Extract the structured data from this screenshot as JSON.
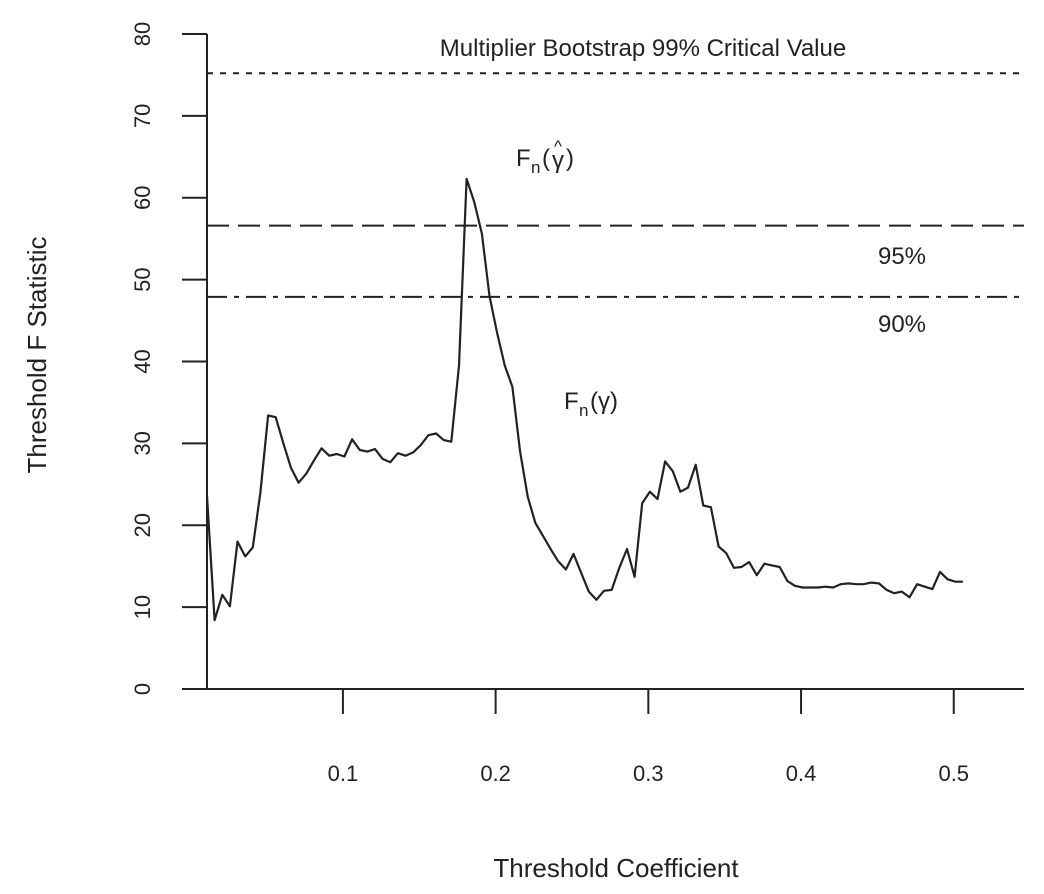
{
  "chart_data": {
    "type": "line",
    "title": "",
    "xlabel": "Threshold Coefficient",
    "ylabel": "Threshold F Statistic",
    "xlim": [
      0.011,
      0.546
    ],
    "ylim": [
      0,
      80
    ],
    "x_ticks": [
      0.1,
      0.2,
      0.3,
      0.4,
      0.5
    ],
    "x_tick_labels": [
      "0.1",
      "0.2",
      "0.3",
      "0.4",
      "0.5"
    ],
    "y_ticks": [
      0,
      10,
      20,
      30,
      40,
      50,
      60,
      70,
      80
    ],
    "y_tick_labels": [
      "0",
      "10",
      "20",
      "30",
      "40",
      "50",
      "60",
      "70",
      "80"
    ],
    "grid": false,
    "series": [
      {
        "points": [
          [
            0.011,
            23.6
          ],
          [
            0.016,
            8.4
          ],
          [
            0.021,
            11.5
          ],
          [
            0.026,
            10.1
          ],
          [
            0.031,
            18.0
          ],
          [
            0.036,
            16.2
          ],
          [
            0.041,
            17.3
          ],
          [
            0.046,
            24.0
          ],
          [
            0.051,
            33.4
          ],
          [
            0.056,
            33.2
          ],
          [
            0.061,
            30.0
          ],
          [
            0.066,
            27.0
          ],
          [
            0.071,
            25.2
          ],
          [
            0.076,
            26.3
          ],
          [
            0.081,
            27.9
          ],
          [
            0.086,
            29.4
          ],
          [
            0.091,
            28.5
          ],
          [
            0.096,
            28.7
          ],
          [
            0.101,
            28.4
          ],
          [
            0.106,
            30.5
          ],
          [
            0.111,
            29.2
          ],
          [
            0.116,
            29.0
          ],
          [
            0.121,
            29.3
          ],
          [
            0.126,
            28.1
          ],
          [
            0.131,
            27.7
          ],
          [
            0.136,
            28.8
          ],
          [
            0.141,
            28.5
          ],
          [
            0.146,
            28.9
          ],
          [
            0.151,
            29.8
          ],
          [
            0.156,
            31.0
          ],
          [
            0.161,
            31.2
          ],
          [
            0.166,
            30.4
          ],
          [
            0.171,
            30.2
          ],
          [
            0.176,
            39.5
          ],
          [
            0.181,
            62.3
          ],
          [
            0.186,
            59.5
          ],
          [
            0.191,
            55.6
          ],
          [
            0.196,
            48.0
          ],
          [
            0.201,
            43.5
          ],
          [
            0.206,
            39.5
          ],
          [
            0.211,
            36.9
          ],
          [
            0.216,
            29.0
          ],
          [
            0.221,
            23.5
          ],
          [
            0.226,
            20.3
          ],
          [
            0.231,
            18.7
          ],
          [
            0.236,
            17.1
          ],
          [
            0.241,
            15.6
          ],
          [
            0.246,
            14.6
          ],
          [
            0.251,
            16.5
          ],
          [
            0.256,
            14.2
          ],
          [
            0.261,
            11.9
          ],
          [
            0.266,
            10.9
          ],
          [
            0.271,
            12.0
          ],
          [
            0.276,
            12.1
          ],
          [
            0.281,
            14.8
          ],
          [
            0.286,
            17.1
          ],
          [
            0.291,
            13.7
          ],
          [
            0.296,
            22.7
          ],
          [
            0.301,
            24.1
          ],
          [
            0.306,
            23.2
          ],
          [
            0.311,
            27.8
          ],
          [
            0.316,
            26.6
          ],
          [
            0.321,
            24.1
          ],
          [
            0.326,
            24.6
          ],
          [
            0.331,
            27.4
          ],
          [
            0.336,
            22.4
          ],
          [
            0.341,
            22.2
          ],
          [
            0.346,
            17.4
          ],
          [
            0.351,
            16.6
          ],
          [
            0.356,
            14.8
          ],
          [
            0.361,
            14.9
          ],
          [
            0.366,
            15.5
          ],
          [
            0.371,
            13.9
          ],
          [
            0.376,
            15.3
          ],
          [
            0.381,
            15.1
          ],
          [
            0.386,
            14.9
          ],
          [
            0.391,
            13.2
          ],
          [
            0.396,
            12.6
          ],
          [
            0.401,
            12.4
          ],
          [
            0.406,
            12.4
          ],
          [
            0.411,
            12.4
          ],
          [
            0.416,
            12.5
          ],
          [
            0.421,
            12.4
          ],
          [
            0.426,
            12.8
          ],
          [
            0.431,
            12.9
          ],
          [
            0.436,
            12.8
          ],
          [
            0.441,
            12.8
          ],
          [
            0.446,
            13.0
          ],
          [
            0.451,
            12.9
          ],
          [
            0.456,
            12.1
          ],
          [
            0.461,
            11.7
          ],
          [
            0.466,
            11.9
          ],
          [
            0.471,
            11.2
          ],
          [
            0.476,
            12.8
          ],
          [
            0.481,
            12.5
          ],
          [
            0.486,
            12.2
          ],
          [
            0.491,
            14.3
          ],
          [
            0.496,
            13.4
          ],
          [
            0.501,
            13.1
          ],
          [
            0.506,
            13.1
          ]
        ]
      }
    ],
    "reference_lines": [
      {
        "value": 75.2,
        "style": "dotted"
      },
      {
        "value": 56.6,
        "style": "dashed"
      },
      {
        "value": 47.9,
        "style": "dashdot"
      }
    ],
    "annotations": {
      "critical_label": "Multiplier Bootstrap 99% Critical Value",
      "label_95": "95%",
      "label_90": "90%",
      "peak_base": "F",
      "peak_sub": "n",
      "peak_arg_open": "(",
      "peak_hat": "^",
      "peak_gamma": "γ",
      "peak_arg_close": ")",
      "curve_base": "F",
      "curve_sub": "n",
      "curve_arg": "(γ)"
    }
  }
}
